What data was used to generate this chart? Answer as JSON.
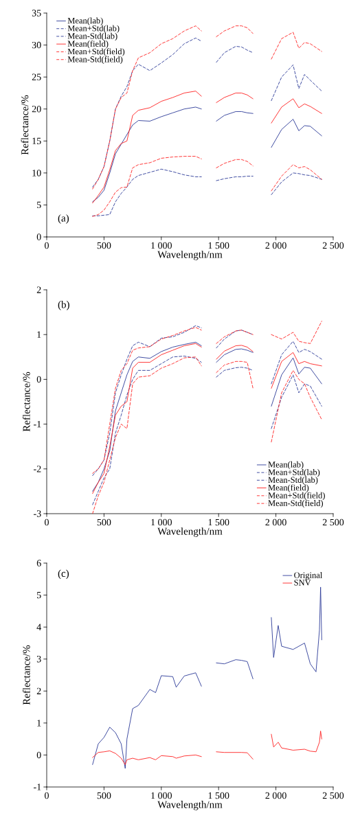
{
  "chart_data": [
    {
      "type": "line",
      "xlabel": "Wavelength/nm",
      "ylabel": "Reflectance/%",
      "annotations": [
        "(a)"
      ],
      "legend": "top left",
      "x": [
        400,
        450,
        500,
        550,
        600,
        650,
        700,
        750,
        800,
        900,
        1000,
        1100,
        1200,
        1300,
        1350,
        1420,
        1480,
        1550,
        1650,
        1700,
        1750,
        1800,
        1880,
        1960,
        2050,
        2150,
        2200,
        2250,
        2300,
        2400
      ],
      "xlim": [
        0,
        2500
      ],
      "xticks": [
        0,
        500,
        {
          "value": 1000,
          "label": "1 000"
        },
        {
          "value": 1500,
          "label": "1 500"
        },
        {
          "value": 2000,
          "label": "2 000"
        },
        {
          "value": 2500,
          "label": "2 500"
        }
      ],
      "ylim": [
        0,
        35
      ],
      "yticks": [
        0,
        5,
        10,
        15,
        20,
        25,
        30,
        35
      ],
      "series": [
        {
          "name": "Mean(lab)",
          "color": "#2b3a97",
          "line_style": "solid",
          "values": [
            5.5,
            6.2,
            7.3,
            10,
            13,
            14.5,
            16,
            17.5,
            18.2,
            18.1,
            18.8,
            19.4,
            20,
            20.3,
            20,
            null,
            18.1,
            19,
            19.6,
            19.6,
            19.4,
            19.3,
            null,
            14,
            16.8,
            18.4,
            16.6,
            17.4,
            17.3,
            15.8
          ]
        },
        {
          "name": "Mean+Std(lab)",
          "color": "#2b3a97",
          "line_style": "dashed",
          "values": [
            7.8,
            9,
            11,
            15,
            20,
            22,
            23.5,
            26,
            27,
            26,
            27.2,
            28.5,
            30.2,
            31.1,
            30.6,
            null,
            27.3,
            28.8,
            29.8,
            29.7,
            29.2,
            28.8,
            null,
            21.3,
            25,
            26.9,
            23.2,
            25.4,
            24.5,
            22.8
          ]
        },
        {
          "name": "Mean-Std(lab)",
          "color": "#2b3a97",
          "line_style": "dashed",
          "values": [
            3.3,
            3.3,
            3.4,
            3.5,
            5.5,
            6.8,
            7.8,
            9,
            9.6,
            10.1,
            10.6,
            10.2,
            9.7,
            9.4,
            9.4,
            null,
            8.8,
            9.1,
            9.4,
            9.4,
            9.5,
            9.5,
            null,
            6.6,
            8.6,
            10,
            9.9,
            9.7,
            9.6,
            9
          ]
        },
        {
          "name": "Mean(field)",
          "color": "#ff2020",
          "line_style": "solid",
          "values": [
            5.3,
            6.5,
            7.8,
            10.5,
            13.5,
            14.6,
            15,
            19,
            19.8,
            20.2,
            21.2,
            21.8,
            22.5,
            22.8,
            22,
            null,
            21,
            21.8,
            22.5,
            22.5,
            22.2,
            21.6,
            null,
            17.8,
            20.3,
            21.6,
            20.2,
            20.8,
            20.4,
            19.3
          ]
        },
        {
          "name": "Mean+Std(field)",
          "color": "#ff2020",
          "line_style": "dashed",
          "values": [
            7.5,
            9,
            11,
            15,
            20,
            21.8,
            22.5,
            26,
            28,
            28.8,
            30.2,
            31,
            32.2,
            33,
            32.2,
            null,
            31.3,
            32.2,
            33,
            33,
            32.7,
            31.8,
            null,
            27.8,
            31,
            32,
            29.5,
            30.4,
            30.2,
            29
          ]
        },
        {
          "name": "Mean-Std(field)",
          "color": "#ff2020",
          "line_style": "dashed",
          "values": [
            3.2,
            3.5,
            4.2,
            5.5,
            7,
            7.7,
            7.8,
            10.8,
            11.3,
            11.6,
            12.3,
            12.5,
            12.6,
            12.6,
            12.2,
            null,
            10.8,
            11.5,
            12.1,
            12.1,
            11.8,
            11.1,
            null,
            7.2,
            9.5,
            11.3,
            10.8,
            11,
            10.5,
            9
          ]
        }
      ]
    },
    {
      "type": "line",
      "xlabel": "Wavelength/nm",
      "ylabel": "Reflectance/%",
      "annotations": [
        "(b)"
      ],
      "legend": "bottom right",
      "x": [
        400,
        450,
        500,
        550,
        600,
        650,
        700,
        750,
        800,
        900,
        1000,
        1100,
        1200,
        1300,
        1350,
        1420,
        1480,
        1550,
        1650,
        1700,
        1750,
        1800,
        1880,
        1960,
        2050,
        2150,
        2200,
        2250,
        2300,
        2400
      ],
      "xlim": [
        0,
        2500
      ],
      "xticks": [
        0,
        500,
        {
          "value": 1000,
          "label": "1 000"
        },
        {
          "value": 1500,
          "label": "1 500"
        },
        {
          "value": 2000,
          "label": "2 000"
        },
        {
          "value": 2500,
          "label": "2 500"
        }
      ],
      "ylim": [
        -3,
        2
      ],
      "yticks": [
        -3,
        -2,
        -1,
        0,
        1,
        2
      ],
      "series": [
        {
          "name": "Mean(lab)",
          "color": "#2b3a97",
          "line_style": "solid",
          "values": [
            -2.5,
            -2.3,
            -2.0,
            -1.6,
            -0.7,
            -0.3,
            0.1,
            0.4,
            0.5,
            0.47,
            0.62,
            0.72,
            0.78,
            0.83,
            0.75,
            null,
            0.38,
            0.55,
            0.67,
            0.68,
            0.65,
            0.6,
            null,
            -0.6,
            0.1,
            0.48,
            0.12,
            0.27,
            0.25,
            -0.1
          ]
        },
        {
          "name": "Mean+Std(lab)",
          "color": "#2b3a97",
          "line_style": "dashed",
          "values": [
            -2.15,
            -2.0,
            -1.8,
            -1.2,
            -0.3,
            0.1,
            0.45,
            0.75,
            0.83,
            0.73,
            0.92,
            0.95,
            1.05,
            1.2,
            1.15,
            null,
            0.7,
            0.9,
            1.08,
            1.1,
            1.05,
            1.0,
            null,
            -0.1,
            0.55,
            0.85,
            0.6,
            0.67,
            0.62,
            0.45
          ]
        },
        {
          "name": "Mean-Std(lab)",
          "color": "#2b3a97",
          "line_style": "dashed",
          "values": [
            -2.8,
            -2.5,
            -2.2,
            -2.0,
            -1.2,
            -0.8,
            -0.35,
            0.0,
            0.2,
            0.2,
            0.35,
            0.5,
            0.52,
            0.47,
            0.38,
            null,
            0.05,
            0.2,
            0.26,
            0.27,
            0.25,
            0.2,
            null,
            -1.1,
            -0.4,
            0.1,
            -0.3,
            -0.1,
            -0.15,
            -0.6
          ]
        },
        {
          "name": "Mean(field)",
          "color": "#ff2020",
          "line_style": "solid",
          "values": [
            -2.55,
            -2.3,
            -2.1,
            -1.5,
            -0.8,
            -0.6,
            -0.5,
            0.25,
            0.38,
            0.38,
            0.55,
            0.65,
            0.75,
            0.8,
            0.72,
            null,
            0.45,
            0.63,
            0.75,
            0.76,
            0.72,
            0.62,
            null,
            -0.2,
            0.4,
            0.6,
            0.35,
            0.4,
            0.35,
            0.3
          ]
        },
        {
          "name": "Mean+Std(field)",
          "color": "#ff2020",
          "line_style": "dashed",
          "values": [
            -2.1,
            -2.0,
            -1.8,
            -1.0,
            -0.2,
            0.2,
            0.35,
            0.65,
            0.7,
            0.73,
            0.9,
            0.98,
            1.08,
            1.16,
            1.1,
            null,
            0.8,
            0.95,
            1.08,
            1.1,
            1.05,
            1.0,
            null,
            1.0,
            0.9,
            1.05,
            0.85,
            0.82,
            0.8,
            1.3
          ]
        },
        {
          "name": "Mean-Std(field)",
          "color": "#ff2020",
          "line_style": "dashed",
          "values": [
            -3.0,
            -2.6,
            -2.3,
            -1.8,
            -1.3,
            -1.0,
            -1.1,
            -0.1,
            0.05,
            0.08,
            0.25,
            0.35,
            0.48,
            0.5,
            0.3,
            null,
            0.15,
            0.32,
            0.4,
            0.4,
            0.38,
            -0.2,
            null,
            -1.4,
            -0.3,
            0.2,
            0.0,
            -0.1,
            -0.4,
            -0.9
          ]
        }
      ]
    },
    {
      "type": "line",
      "xlabel": "Wavelength/nm",
      "ylabel": "Reflectance/%",
      "annotations": [
        "(c)"
      ],
      "legend": "top right",
      "x": [
        400,
        450,
        500,
        550,
        600,
        650,
        685,
        700,
        750,
        800,
        900,
        950,
        1000,
        1100,
        1130,
        1200,
        1300,
        1350,
        1420,
        1480,
        1550,
        1650,
        1700,
        1750,
        1800,
        1880,
        1960,
        1980,
        2020,
        2050,
        2150,
        2250,
        2300,
        2350,
        2380,
        2390,
        2400
      ],
      "xlim": [
        0,
        2500
      ],
      "xticks": [
        0,
        500,
        {
          "value": 1000,
          "label": "1 000"
        },
        {
          "value": 1500,
          "label": "1 500"
        },
        {
          "value": 2000,
          "label": "2 000"
        },
        {
          "value": 2500,
          "label": "2 500"
        }
      ],
      "ylim": [
        -1,
        6
      ],
      "yticks": [
        -1,
        0,
        1,
        2,
        3,
        4,
        5,
        6
      ],
      "series": [
        {
          "name": "Original",
          "color": "#2b3a97",
          "line_style": "solid",
          "values": [
            -0.3,
            0.35,
            0.55,
            0.87,
            0.7,
            0.35,
            -0.42,
            0.5,
            1.45,
            1.55,
            2.05,
            1.95,
            2.48,
            2.45,
            2.12,
            2.47,
            2.57,
            2.15,
            null,
            2.88,
            2.85,
            2.98,
            2.96,
            2.92,
            2.38,
            null,
            4.3,
            3.05,
            4.05,
            3.4,
            3.3,
            3.5,
            2.85,
            2.6,
            3.9,
            5.25,
            3.6
          ]
        },
        {
          "name": "SNV",
          "color": "#ff2020",
          "line_style": "solid",
          "values": [
            -0.08,
            0.08,
            0.1,
            0.13,
            0.05,
            -0.1,
            -0.3,
            -0.15,
            -0.1,
            -0.15,
            -0.08,
            -0.15,
            -0.02,
            -0.05,
            -0.1,
            -0.03,
            0.0,
            -0.05,
            null,
            0.1,
            0.08,
            0.08,
            0.08,
            0.07,
            -0.13,
            null,
            0.65,
            0.25,
            0.4,
            0.22,
            0.15,
            0.18,
            0.12,
            0.1,
            0.4,
            0.75,
            0.5
          ]
        }
      ]
    }
  ]
}
